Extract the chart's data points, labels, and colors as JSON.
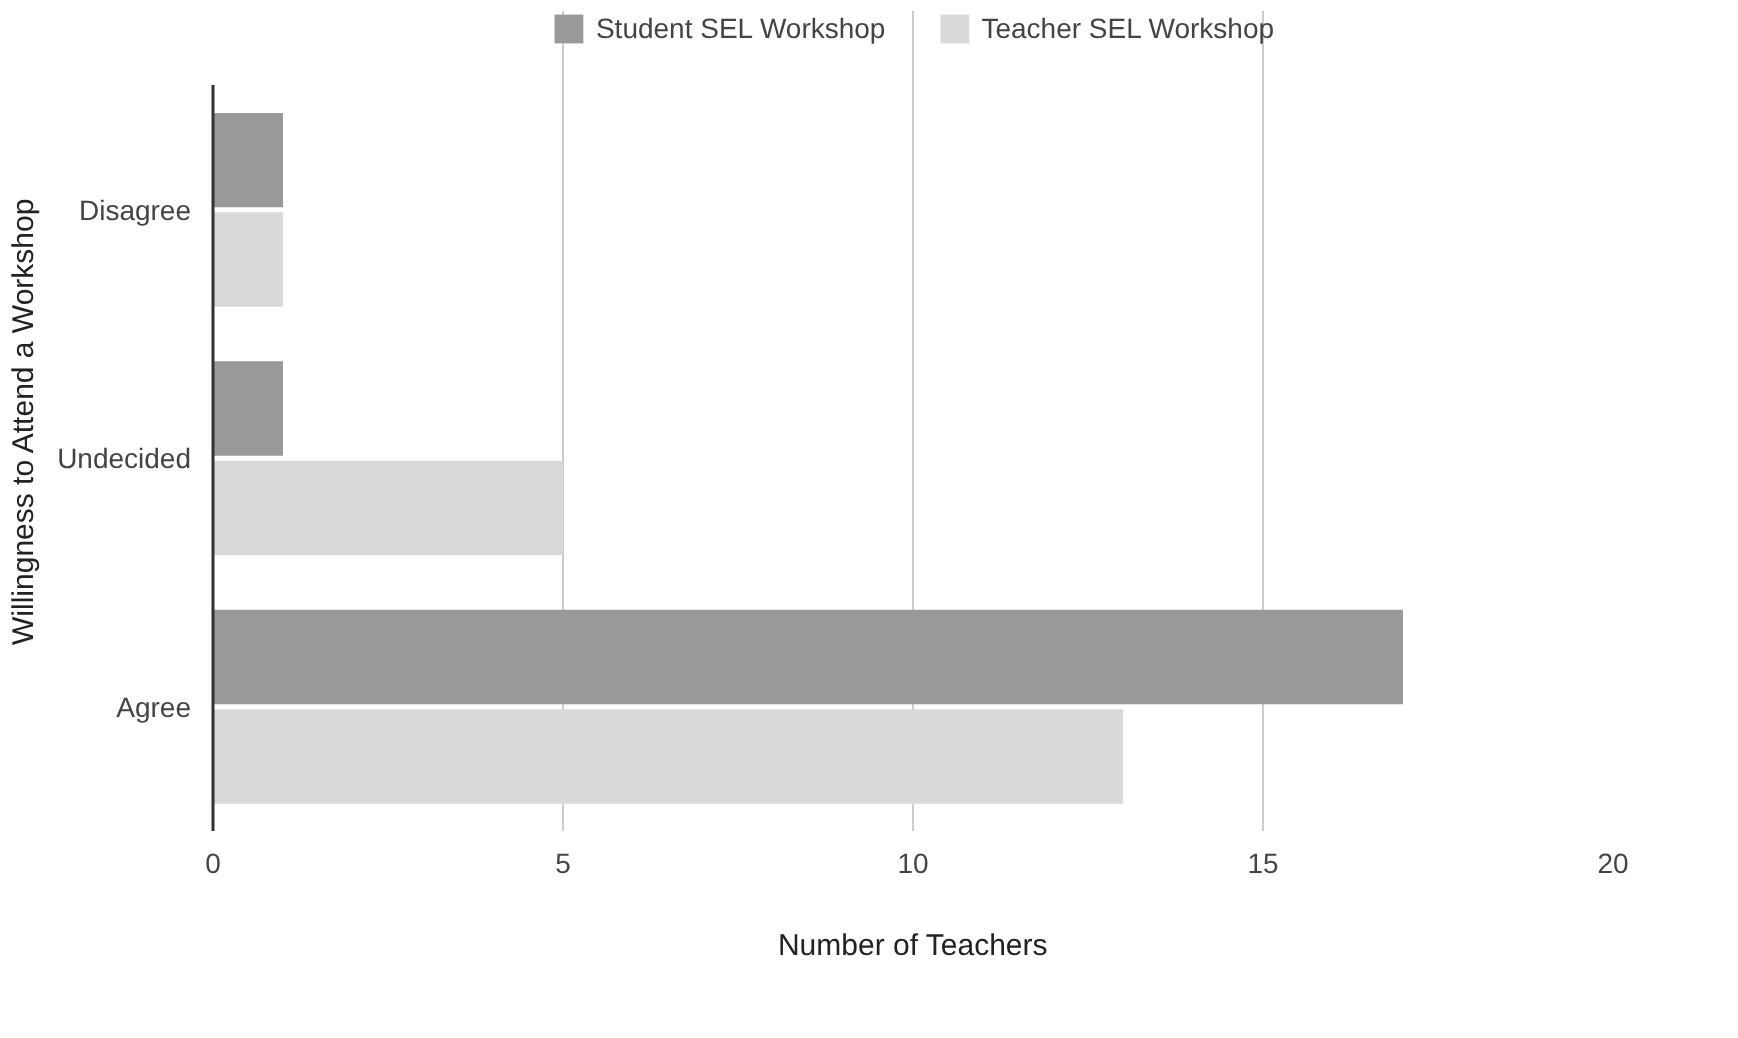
{
  "chart_data": {
    "type": "bar",
    "orientation": "horizontal",
    "xlabel": "Number of Teachers",
    "ylabel": "Willingness to Attend a Workshop",
    "categories": [
      "Disagree",
      "Undecided",
      "Agree"
    ],
    "series": [
      {
        "name": "Student SEL Workshop",
        "color": "#999999",
        "values": [
          1,
          1,
          17
        ]
      },
      {
        "name": "Teacher SEL Workshop",
        "color": "#d9d9d9",
        "values": [
          1,
          5,
          13
        ]
      }
    ],
    "xlim": [
      0,
      20
    ],
    "xticks": [
      0,
      5,
      10,
      15,
      20
    ],
    "grid": "x",
    "legend": "top"
  }
}
